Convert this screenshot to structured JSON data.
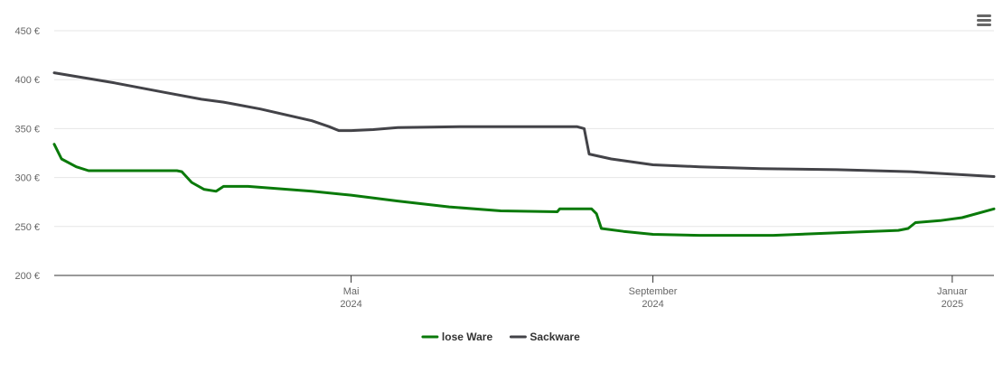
{
  "chart_data": {
    "type": "line",
    "title": "",
    "xlabel": "",
    "ylabel": "",
    "ylim": [
      200,
      450
    ],
    "xlim": [
      "2024-01-01",
      "2025-01-18"
    ],
    "grid": true,
    "legend_position": "bottom",
    "y_ticks": [
      {
        "value": 200,
        "label": "200 €"
      },
      {
        "value": 250,
        "label": "250 €"
      },
      {
        "value": 300,
        "label": "300 €"
      },
      {
        "value": 350,
        "label": "350 €"
      },
      {
        "value": 400,
        "label": "400 €"
      },
      {
        "value": 450,
        "label": "450 €"
      }
    ],
    "x_ticks": [
      {
        "date": "2024-05-01",
        "label": "Mai",
        "sublabel": "2024"
      },
      {
        "date": "2024-09-01",
        "label": "September",
        "sublabel": "2024"
      },
      {
        "date": "2025-01-01",
        "label": "Januar",
        "sublabel": "2025"
      }
    ],
    "series": [
      {
        "name": "lose Ware",
        "color": "#0a7a0a",
        "points": [
          [
            "2024-01-01",
            334
          ],
          [
            "2024-01-04",
            319
          ],
          [
            "2024-01-10",
            311
          ],
          [
            "2024-01-15",
            307
          ],
          [
            "2024-01-25",
            307
          ],
          [
            "2024-02-20",
            307
          ],
          [
            "2024-02-22",
            306
          ],
          [
            "2024-02-26",
            295
          ],
          [
            "2024-03-02",
            288
          ],
          [
            "2024-03-07",
            286
          ],
          [
            "2024-03-10",
            291
          ],
          [
            "2024-03-20",
            291
          ],
          [
            "2024-04-15",
            286
          ],
          [
            "2024-05-01",
            282
          ],
          [
            "2024-05-20",
            276
          ],
          [
            "2024-06-10",
            270
          ],
          [
            "2024-07-01",
            266
          ],
          [
            "2024-07-24",
            265
          ],
          [
            "2024-07-25",
            268
          ],
          [
            "2024-08-07",
            268
          ],
          [
            "2024-08-09",
            263
          ],
          [
            "2024-08-11",
            248
          ],
          [
            "2024-08-20",
            245
          ],
          [
            "2024-09-01",
            242
          ],
          [
            "2024-09-20",
            241
          ],
          [
            "2024-10-20",
            241
          ],
          [
            "2024-11-20",
            244
          ],
          [
            "2024-12-10",
            246
          ],
          [
            "2024-12-14",
            248
          ],
          [
            "2024-12-17",
            254
          ],
          [
            "2024-12-27",
            256
          ],
          [
            "2025-01-05",
            259
          ],
          [
            "2025-01-18",
            268
          ]
        ]
      },
      {
        "name": "Sackware",
        "color": "#434348",
        "points": [
          [
            "2024-01-01",
            407
          ],
          [
            "2024-01-25",
            397
          ],
          [
            "2024-02-15",
            387
          ],
          [
            "2024-03-01",
            380
          ],
          [
            "2024-03-10",
            377
          ],
          [
            "2024-03-25",
            370
          ],
          [
            "2024-04-15",
            358
          ],
          [
            "2024-04-22",
            352
          ],
          [
            "2024-04-26",
            348
          ],
          [
            "2024-05-01",
            348
          ],
          [
            "2024-05-10",
            349
          ],
          [
            "2024-05-20",
            351
          ],
          [
            "2024-06-15",
            352
          ],
          [
            "2024-07-15",
            352
          ],
          [
            "2024-08-01",
            352
          ],
          [
            "2024-08-04",
            350
          ],
          [
            "2024-08-06",
            324
          ],
          [
            "2024-08-15",
            319
          ],
          [
            "2024-09-01",
            313
          ],
          [
            "2024-09-20",
            311
          ],
          [
            "2024-10-15",
            309
          ],
          [
            "2024-11-15",
            308
          ],
          [
            "2024-12-15",
            306
          ],
          [
            "2025-01-18",
            301
          ]
        ]
      }
    ]
  },
  "toolbar": {
    "menu_icon": "hamburger-menu-icon"
  }
}
